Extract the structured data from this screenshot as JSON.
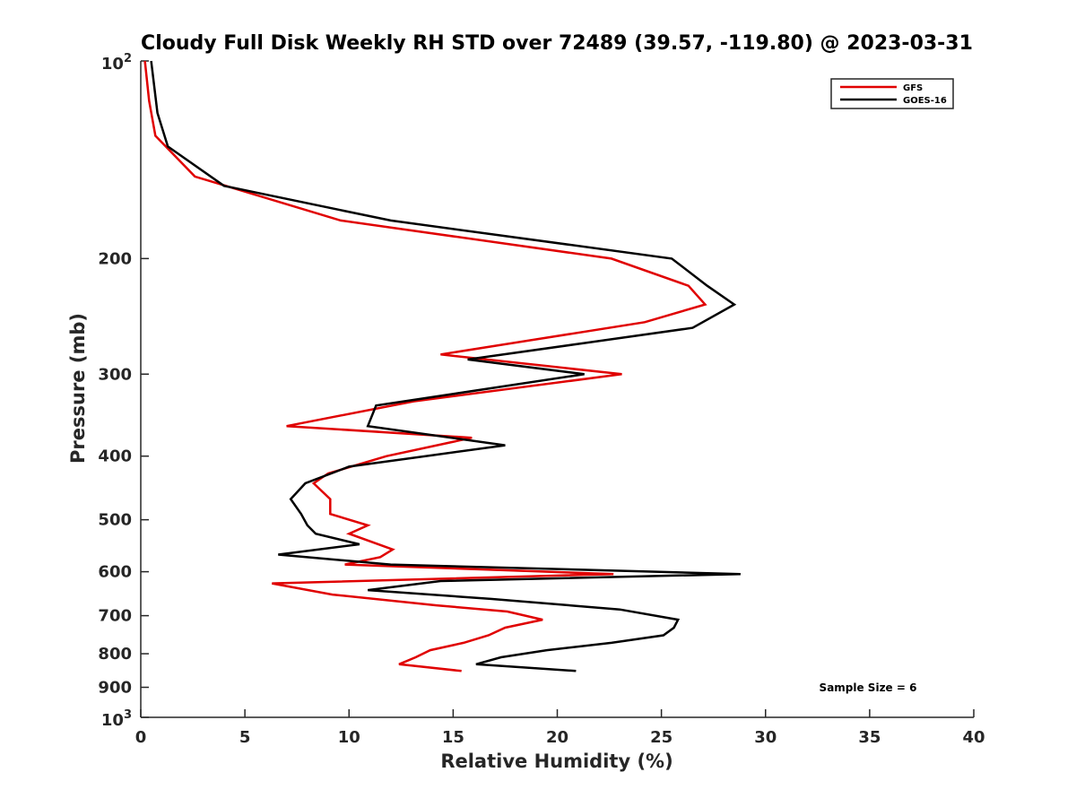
{
  "chart_data": {
    "type": "line",
    "title": "Cloudy Full Disk Weekly RH STD over 72489 (39.57, -119.80) @ 2023-03-31",
    "xlabel": "Relative Humidity (%)",
    "ylabel": "Pressure (mb)",
    "xlim": [
      0,
      40
    ],
    "ylim": [
      100,
      1000
    ],
    "y_scale": "log",
    "y_reversed": true,
    "x_ticks": [
      0,
      5,
      10,
      15,
      20,
      25,
      30,
      35,
      40
    ],
    "x_tick_labels": [
      "0",
      "5",
      "10",
      "15",
      "20",
      "25",
      "30",
      "35",
      "40"
    ],
    "y_ticks": [
      200,
      300,
      400,
      500,
      600,
      700,
      800,
      900
    ],
    "y_tick_labels": [
      "200",
      "300",
      "400",
      "500",
      "600",
      "700",
      "800",
      "900"
    ],
    "y_power_ticks": [
      {
        "value": 100,
        "base": "10",
        "exp": "2"
      },
      {
        "value": 1000,
        "base": "10",
        "exp": "3"
      }
    ],
    "grid": false,
    "legend_position": "top-right",
    "annotation": "Sample Size = 6",
    "series": [
      {
        "name": "GFS",
        "color": "#e00000",
        "points": [
          [
            0.2,
            100
          ],
          [
            0.4,
            115
          ],
          [
            0.7,
            130
          ],
          [
            2.6,
            150
          ],
          [
            9.6,
            175
          ],
          [
            22.6,
            200
          ],
          [
            26.3,
            220
          ],
          [
            27.1,
            235
          ],
          [
            24.2,
            250
          ],
          [
            14.4,
            280
          ],
          [
            23.1,
            300
          ],
          [
            13.1,
            330
          ],
          [
            7.0,
            360
          ],
          [
            15.9,
            375
          ],
          [
            11.8,
            400
          ],
          [
            9.0,
            425
          ],
          [
            8.3,
            440
          ],
          [
            9.1,
            465
          ],
          [
            9.1,
            490
          ],
          [
            10.9,
            510
          ],
          [
            10.0,
            525
          ],
          [
            12.1,
            555
          ],
          [
            11.5,
            570
          ],
          [
            9.8,
            585
          ],
          [
            22.7,
            605
          ],
          [
            6.3,
            625
          ],
          [
            9.2,
            650
          ],
          [
            14.2,
            675
          ],
          [
            17.6,
            690
          ],
          [
            19.3,
            710
          ],
          [
            17.5,
            730
          ],
          [
            16.7,
            750
          ],
          [
            15.5,
            770
          ],
          [
            13.9,
            790
          ],
          [
            13.2,
            810
          ],
          [
            12.4,
            830
          ],
          [
            15.4,
            850
          ]
        ]
      },
      {
        "name": "GOES-16",
        "color": "#000000",
        "points": [
          [
            0.5,
            100
          ],
          [
            0.8,
            120
          ],
          [
            1.3,
            135
          ],
          [
            4.0,
            155
          ],
          [
            12.0,
            175
          ],
          [
            25.5,
            200
          ],
          [
            27.2,
            220
          ],
          [
            28.5,
            235
          ],
          [
            26.5,
            255
          ],
          [
            15.7,
            285
          ],
          [
            21.3,
            300
          ],
          [
            11.3,
            335
          ],
          [
            10.9,
            360
          ],
          [
            17.5,
            385
          ],
          [
            10.0,
            415
          ],
          [
            7.9,
            440
          ],
          [
            7.2,
            465
          ],
          [
            7.7,
            490
          ],
          [
            8.0,
            510
          ],
          [
            8.4,
            525
          ],
          [
            10.5,
            545
          ],
          [
            6.6,
            565
          ],
          [
            12.0,
            585
          ],
          [
            28.8,
            605
          ],
          [
            14.4,
            620
          ],
          [
            10.9,
            640
          ],
          [
            16.8,
            660
          ],
          [
            23.0,
            685
          ],
          [
            25.8,
            710
          ],
          [
            25.6,
            730
          ],
          [
            25.1,
            750
          ],
          [
            22.6,
            770
          ],
          [
            19.5,
            790
          ],
          [
            17.3,
            810
          ],
          [
            16.1,
            830
          ],
          [
            20.9,
            850
          ]
        ]
      }
    ]
  }
}
